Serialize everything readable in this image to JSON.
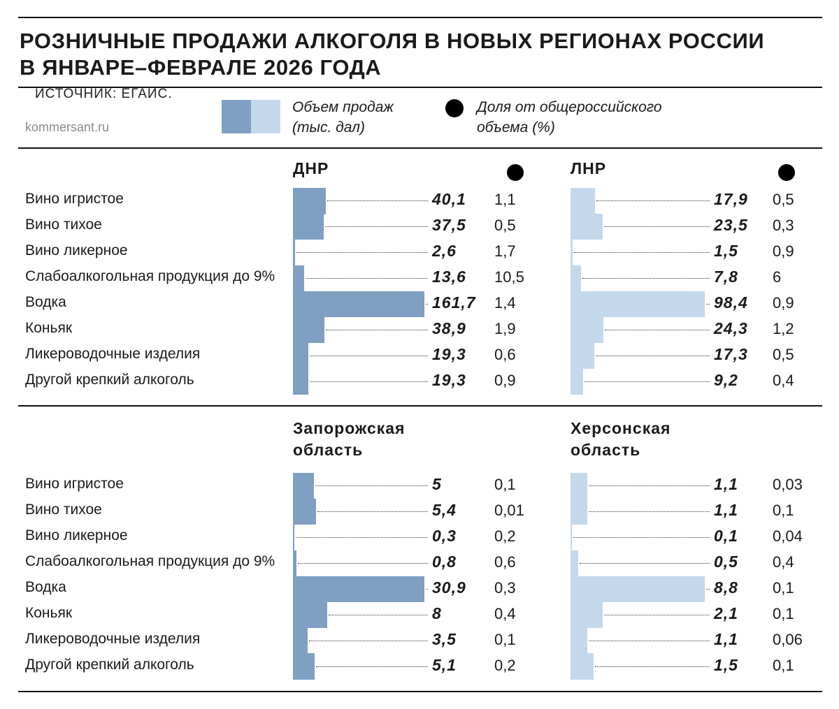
{
  "header": {
    "title_line1": "РОЗНИЧНЫЕ ПРОДАЖИ АЛКОГОЛЯ В НОВЫХ РЕГИОНАХ РОССИИ",
    "title_line2": "В ЯНВАРЕ–ФЕВРАЛЕ 2026 ГОДА",
    "source": "ИСТОЧНИК: ЕГАИС.",
    "site": "kommersant.ru"
  },
  "legend": {
    "volume_label_1": "Объем продаж",
    "volume_label_2": "(тыс. дал)",
    "share_label_1": "Доля от общероссийского",
    "share_label_2": "объема (%)"
  },
  "colors": {
    "dark_blue": "#7f9fc3",
    "light_blue": "#c4d8ec",
    "text": "#1a1a1a",
    "rule": "#111111",
    "site_gray": "#8a8a8a"
  },
  "chart_data": [
    {
      "type": "bar",
      "title": "ДНР",
      "categories": [
        "Вино игристое",
        "Вино тихое",
        "Вино ликерное",
        "Слабоалкогольная продукция до 9%",
        "Водка",
        "Коньяк",
        "Ликероводочные изделия",
        "Другой крепкий алкоголь"
      ],
      "series": [
        {
          "name": "Объем продаж (тыс. дал)",
          "values": [
            "40,1",
            "37,5",
            "2,6",
            "13,6",
            "161,7",
            "38,9",
            "19,3",
            "19,3"
          ]
        },
        {
          "name": "Доля от общероссийского объема (%)",
          "values": [
            "1,1",
            "0,5",
            "1,7",
            "10,5",
            "1,4",
            "1,9",
            "0,6",
            "0,9"
          ]
        }
      ],
      "color": "#7f9fc3"
    },
    {
      "type": "bar",
      "title": "ЛНР",
      "categories": [
        "Вино игристое",
        "Вино тихое",
        "Вино ликерное",
        "Слабоалкогольная продукция до 9%",
        "Водка",
        "Коньяк",
        "Ликероводочные изделия",
        "Другой крепкий алкоголь"
      ],
      "series": [
        {
          "name": "Объем продаж (тыс. дал)",
          "values": [
            "17,9",
            "23,5",
            "1,5",
            "7,8",
            "98,4",
            "24,3",
            "17,3",
            "9,2"
          ]
        },
        {
          "name": "Доля от общероссийского объема (%)",
          "values": [
            "0,5",
            "0,3",
            "0,9",
            "6",
            "0,9",
            "1,2",
            "0,5",
            "0,4"
          ]
        }
      ],
      "color": "#c4d8ec"
    },
    {
      "type": "bar",
      "title": "Запорожская область",
      "categories": [
        "Вино игристое",
        "Вино тихое",
        "Вино ликерное",
        "Слабоалкогольная продукция до 9%",
        "Водка",
        "Коньяк",
        "Ликероводочные изделия",
        "Другой крепкий алкоголь"
      ],
      "series": [
        {
          "name": "Объем продаж (тыс. дал)",
          "values": [
            "5",
            "5,4",
            "0,3",
            "0,8",
            "30,9",
            "8",
            "3,5",
            "5,1"
          ]
        },
        {
          "name": "Доля от общероссийского объема (%)",
          "values": [
            "0,1",
            "0,01",
            "0,2",
            "0,6",
            "0,3",
            "0,4",
            "0,1",
            "0,2"
          ]
        }
      ],
      "color": "#7f9fc3"
    },
    {
      "type": "bar",
      "title": "Херсонская область",
      "categories": [
        "Вино игристое",
        "Вино тихое",
        "Вино ликерное",
        "Слабоалкогольная продукция до 9%",
        "Водка",
        "Коньяк",
        "Ликероводочные изделия",
        "Другой крепкий алкоголь"
      ],
      "series": [
        {
          "name": "Объем продаж (тыс. дал)",
          "values": [
            "1,1",
            "1,1",
            "0,1",
            "0,5",
            "8,8",
            "2,1",
            "1,1",
            "1,5"
          ]
        },
        {
          "name": "Доля от общероссийского объема (%)",
          "values": [
            "0,03",
            "0,1",
            "0,04",
            "0,4",
            "0,1",
            "0,1",
            "0,06",
            "0,1"
          ]
        }
      ],
      "color": "#c4d8ec"
    }
  ]
}
